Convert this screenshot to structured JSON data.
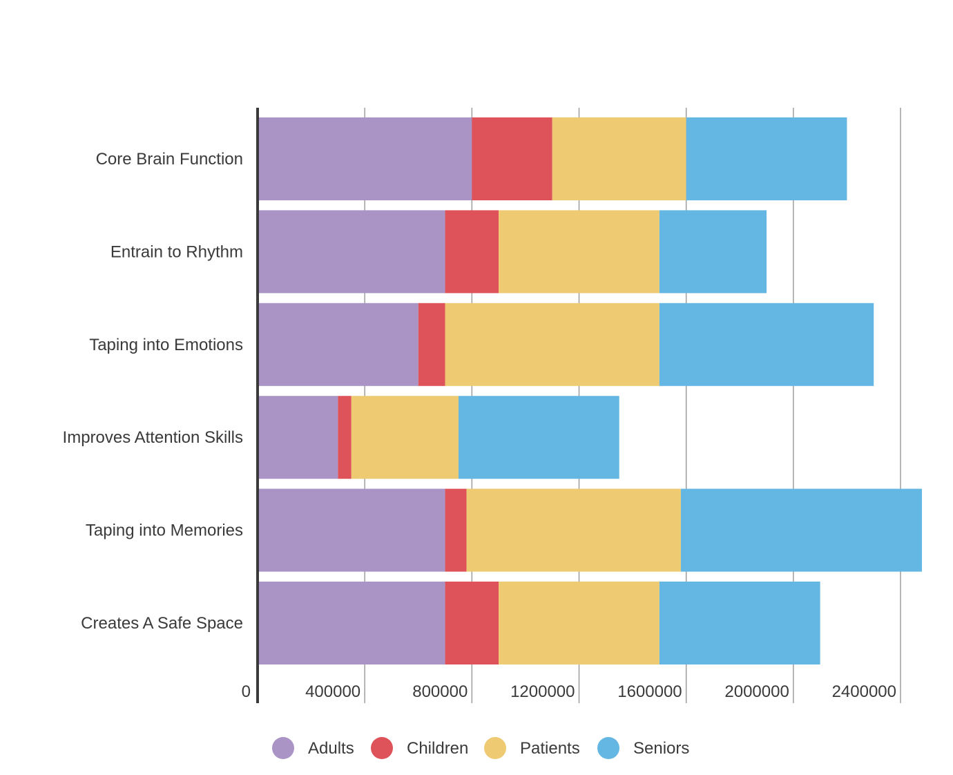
{
  "chart_data": {
    "type": "bar",
    "orientation": "horizontal",
    "stacked": true,
    "categories": [
      "Core Brain Function",
      "Entrain to Rhythm",
      "Taping into Emotions",
      "Improves Attention Skills",
      "Taping into Memories",
      "Creates A Safe Space"
    ],
    "series": [
      {
        "name": "Adults",
        "color": "#AA94C6",
        "values": [
          800000,
          700000,
          600000,
          300000,
          700000,
          700000
        ]
      },
      {
        "name": "Children",
        "color": "#DE535A",
        "values": [
          300000,
          200000,
          100000,
          50000,
          80000,
          200000
        ]
      },
      {
        "name": "Patients",
        "color": "#EECB72",
        "values": [
          500000,
          600000,
          800000,
          400000,
          800000,
          600000
        ]
      },
      {
        "name": "Seniors",
        "color": "#64B7E2",
        "values": [
          600000,
          400000,
          800000,
          600000,
          900000,
          600000
        ]
      }
    ],
    "xlim": [
      0,
      2400000
    ],
    "x_ticks": [
      "0",
      "400000",
      "800000",
      "1200000",
      "1600000",
      "2000000",
      "2400000"
    ],
    "grid": true,
    "legend_position": "bottom"
  }
}
